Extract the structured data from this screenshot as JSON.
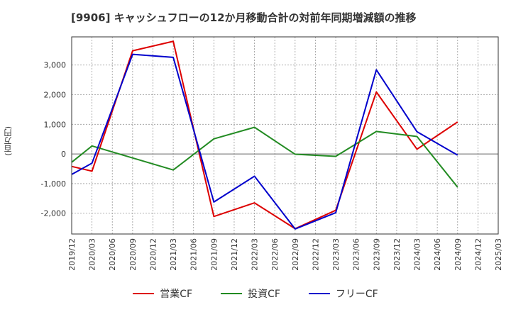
{
  "chart_data": {
    "type": "line",
    "title": "[9906]  キャッシュフローの12か月移動合計の対前年同期増減額の推移",
    "ylabel": "(百万円)",
    "xlabel": "",
    "categories": [
      "2019/12",
      "2020/03",
      "2020/06",
      "2020/09",
      "2020/12",
      "2021/03",
      "2021/06",
      "2021/09",
      "2021/12",
      "2022/03",
      "2022/06",
      "2022/09",
      "2022/12",
      "2023/03",
      "2023/06",
      "2023/09",
      "2023/12",
      "2024/03",
      "2024/06",
      "2024/09",
      "2024/12",
      "2025/03"
    ],
    "ylim": [
      -2700,
      3950
    ],
    "yticks": [
      -2000,
      -1000,
      0,
      1000,
      2000,
      3000
    ],
    "ytick_labels": [
      "-2,000",
      "-1,000",
      "0",
      "1,000",
      "2,000",
      "3,000"
    ],
    "grid": true,
    "series": [
      {
        "name": "営業CF",
        "color": "#dd0000",
        "values": [
          -420,
          -580,
          null,
          3480,
          null,
          3800,
          null,
          -2110,
          null,
          -1650,
          null,
          -2520,
          null,
          -1900,
          null,
          2090,
          null,
          160,
          null,
          1080,
          null,
          null
        ]
      },
      {
        "name": "投資CF",
        "color": "#228B22",
        "values": [
          -280,
          270,
          null,
          null,
          null,
          -540,
          null,
          510,
          null,
          900,
          null,
          -10,
          null,
          -80,
          null,
          760,
          null,
          590,
          null,
          -1120,
          null,
          null
        ]
      },
      {
        "name": "フリーCF",
        "color": "#0000cc",
        "values": [
          -690,
          -310,
          null,
          3360,
          null,
          3260,
          null,
          -1620,
          null,
          -750,
          null,
          -2530,
          null,
          -1980,
          null,
          2840,
          null,
          750,
          null,
          -40,
          null,
          null
        ]
      }
    ]
  }
}
